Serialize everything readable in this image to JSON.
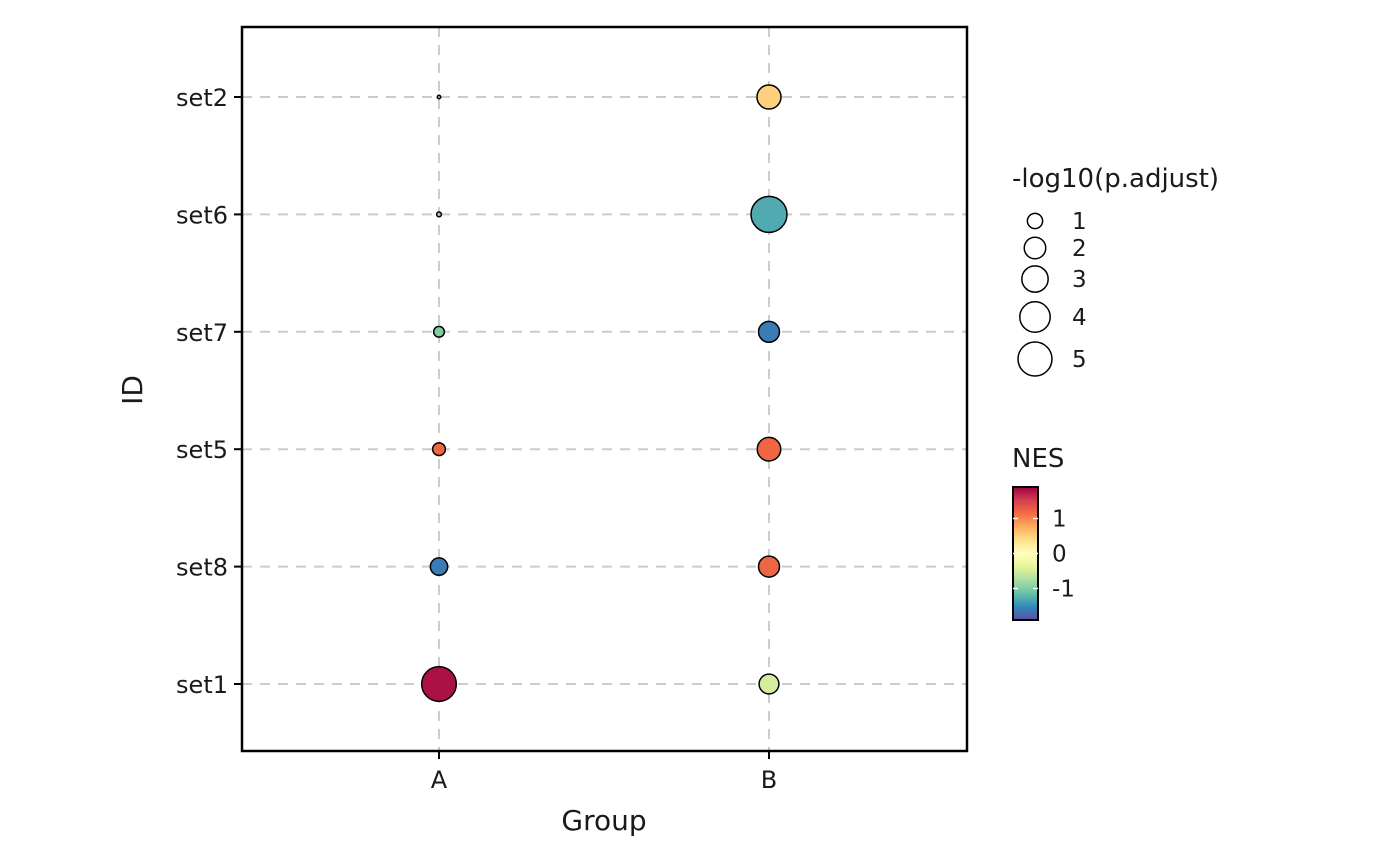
{
  "chart_data": {
    "type": "scatter",
    "xlabel": "Group",
    "ylabel": "ID",
    "x_categories": [
      "A",
      "B"
    ],
    "y_categories": [
      "set2",
      "set6",
      "set7",
      "set5",
      "set8",
      "set1"
    ],
    "grid": true,
    "points": [
      {
        "x": "A",
        "y": "set2",
        "nes": -0.9,
        "neglog10_padj": 0.05
      },
      {
        "x": "A",
        "y": "set6",
        "nes": -0.9,
        "neglog10_padj": 0.1
      },
      {
        "x": "A",
        "y": "set7",
        "nes": -1.0,
        "neglog10_padj": 0.5
      },
      {
        "x": "A",
        "y": "set5",
        "nes": 1.2,
        "neglog10_padj": 0.7
      },
      {
        "x": "A",
        "y": "set8",
        "nes": -1.6,
        "neglog10_padj": 1.3
      },
      {
        "x": "A",
        "y": "set1",
        "nes": 1.8,
        "neglog10_padj": 5.2
      },
      {
        "x": "B",
        "y": "set2",
        "nes": 0.5,
        "neglog10_padj": 2.5
      },
      {
        "x": "B",
        "y": "set6",
        "nes": -1.3,
        "neglog10_padj": 5.6
      },
      {
        "x": "B",
        "y": "set7",
        "nes": -1.6,
        "neglog10_padj": 1.9
      },
      {
        "x": "B",
        "y": "set5",
        "nes": 1.2,
        "neglog10_padj": 2.4
      },
      {
        "x": "B",
        "y": "set8",
        "nes": 1.2,
        "neglog10_padj": 1.9
      },
      {
        "x": "B",
        "y": "set1",
        "nes": -0.5,
        "neglog10_padj": 1.7
      }
    ],
    "size_legend": {
      "title": "-log10(p.adjust)",
      "values": [
        1,
        2,
        3,
        4,
        5
      ],
      "labels": [
        "1",
        "2",
        "3",
        "4",
        "5"
      ]
    },
    "color_legend": {
      "title": "NES",
      "range": [
        -1.9,
        1.9
      ],
      "ticks": [
        1,
        0,
        -1
      ],
      "tick_labels": [
        "1",
        "0",
        "-1"
      ],
      "palette": "Spectral",
      "colors": [
        "#5E4FA2",
        "#3288BD",
        "#66C2A5",
        "#ABDDA4",
        "#E6F598",
        "#FFFFBF",
        "#FEE08B",
        "#FDAE61",
        "#F46D43",
        "#D53E4F",
        "#9E0142"
      ]
    }
  }
}
